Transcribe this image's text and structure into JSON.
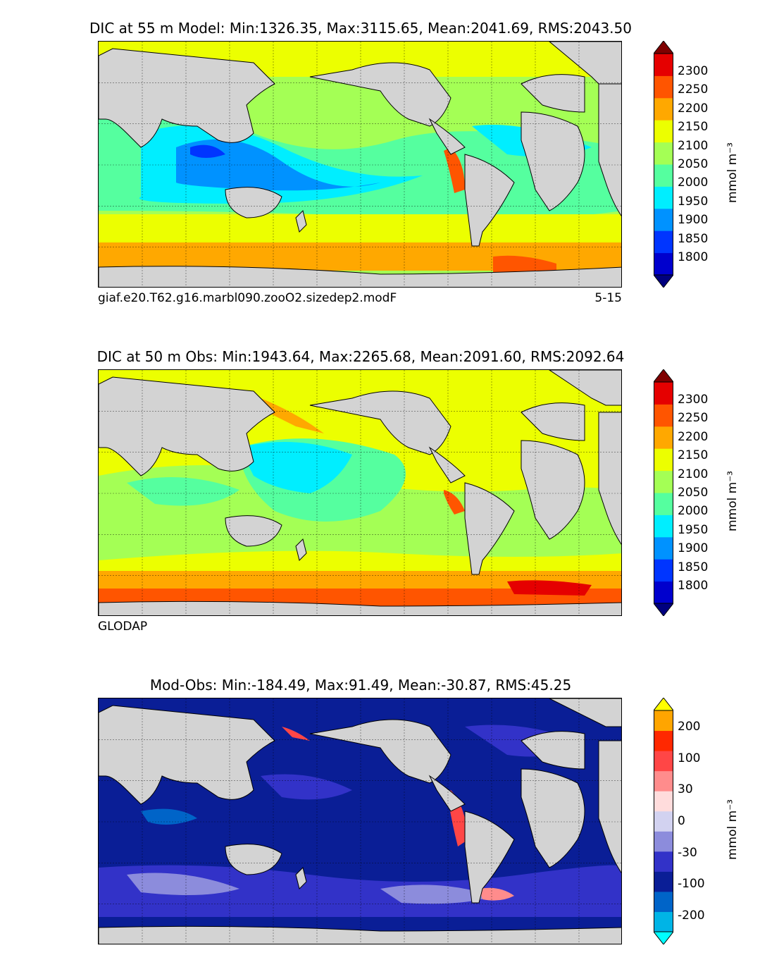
{
  "panels": [
    {
      "id": "model",
      "title": "DIC at 55 m Model: Min:1326.35, Max:3115.65, Mean:2041.69, RMS:2043.50",
      "caption_left": "giaf.e20.T62.g16.marbl090.zooO2.sizedep2.modF",
      "caption_right": "5-15",
      "colorbar": {
        "ticks": [
          "2300",
          "2250",
          "2200",
          "2150",
          "2100",
          "2050",
          "2000",
          "1950",
          "1900",
          "1850",
          "1800"
        ],
        "units": "mmol m⁻³",
        "colors": [
          "#00007f",
          "#0000cd",
          "#0035ff",
          "#0092ff",
          "#00eeff",
          "#55ff9f",
          "#a4ff55",
          "#ecff00",
          "#ffa800",
          "#ff5500",
          "#e50000",
          "#7f0000"
        ]
      }
    },
    {
      "id": "obs",
      "title": "DIC at 50 m Obs: Min:1943.64, Max:2265.68, Mean:2091.60, RMS:2092.64",
      "caption_left": "GLODAP",
      "caption_right": "",
      "colorbar": {
        "ticks": [
          "2300",
          "2250",
          "2200",
          "2150",
          "2100",
          "2050",
          "2000",
          "1950",
          "1900",
          "1850",
          "1800"
        ],
        "units": "mmol m⁻³",
        "colors": [
          "#00007f",
          "#0000cd",
          "#0035ff",
          "#0092ff",
          "#00eeff",
          "#55ff9f",
          "#a4ff55",
          "#ecff00",
          "#ffa800",
          "#ff5500",
          "#e50000",
          "#7f0000"
        ]
      }
    },
    {
      "id": "diff",
      "title": "Mod-Obs: Min:-184.49, Max:91.49, Mean:-30.87, RMS:45.25",
      "caption_left": "",
      "caption_right": "",
      "colorbar": {
        "ticks": [
          "200",
          "100",
          "30",
          "0",
          "-30",
          "-100",
          "-200"
        ],
        "units": "mmol m⁻³",
        "colors": [
          "#00ffff",
          "#00b4e6",
          "#0064c8",
          "#0a1e96",
          "#3232c8",
          "#8c8cdc",
          "#d2d2f0",
          "#ffdcdc",
          "#ff8c8c",
          "#ff4646",
          "#ff2800",
          "#ffa500",
          "#ffff00"
        ]
      }
    }
  ],
  "map_colors": {
    "land": "#d3d3d3",
    "ice": "#ffffff",
    "coast": "#000000"
  }
}
